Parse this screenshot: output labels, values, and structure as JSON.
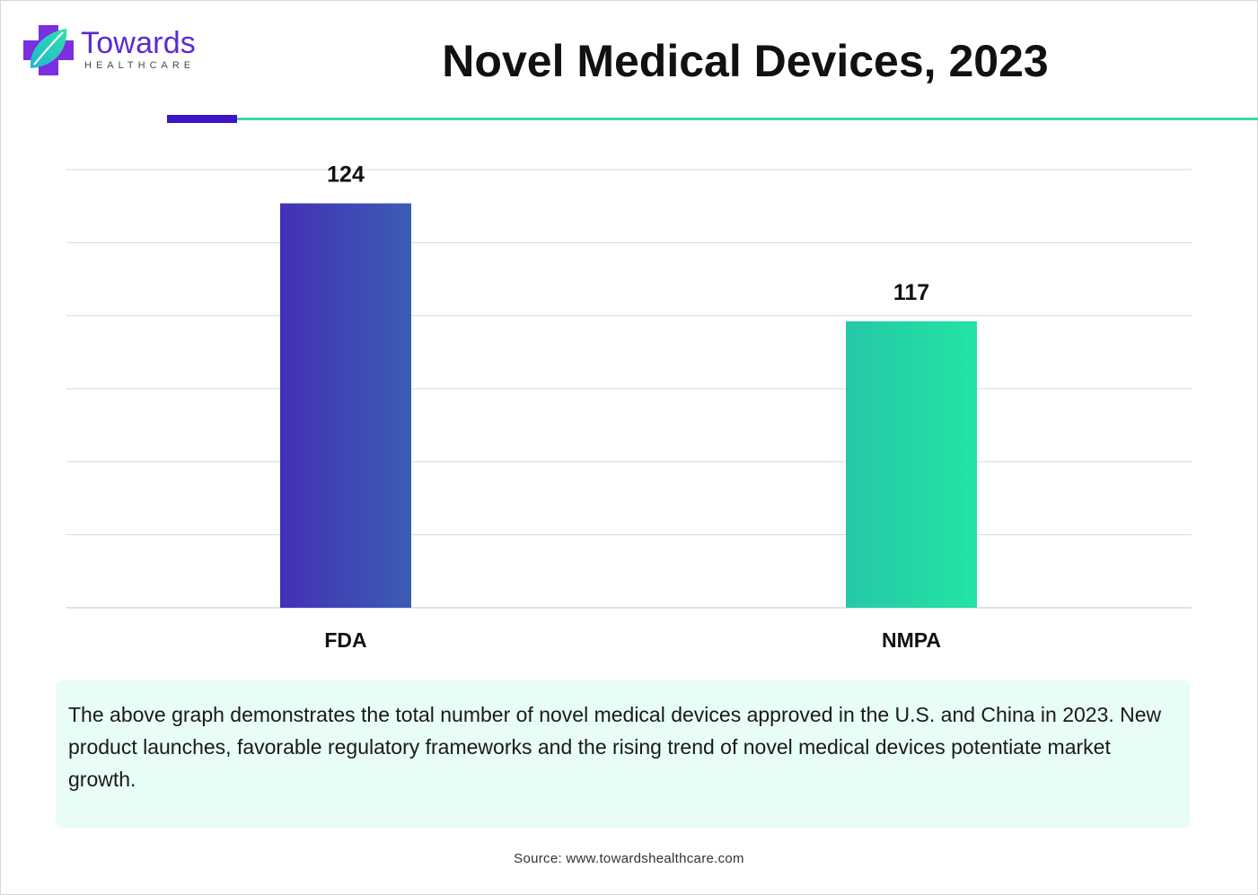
{
  "logo": {
    "name": "Towards",
    "sub": "HEALTHCARE"
  },
  "colors": {
    "fda_start": "#4330b6",
    "fda_end": "#3b5db4",
    "nmpa_start": "#26c8a8",
    "nmpa_end": "#22e4a4",
    "grid": "#d9d9d9",
    "accent_green": "#3fd6ab",
    "accent_purple": "#3b16c6"
  },
  "chart_data": {
    "type": "bar",
    "title": "Novel Medical Devices, 2023",
    "categories": [
      "FDA",
      "NMPA"
    ],
    "values": [
      124,
      117
    ],
    "data_labels": [
      "124",
      "117"
    ],
    "xlabel": "",
    "ylabel": "",
    "ylim": [
      100,
      126
    ],
    "y_axis_ticks_shown": false,
    "grid": true,
    "legend": "none"
  },
  "description": "The above graph demonstrates the total number of novel medical devices approved in the U.S. and China in 2023. New product launches, favorable regulatory frameworks and the rising trend of novel medical devices potentiate market growth.",
  "source": "Source: www.towardshealthcare.com"
}
